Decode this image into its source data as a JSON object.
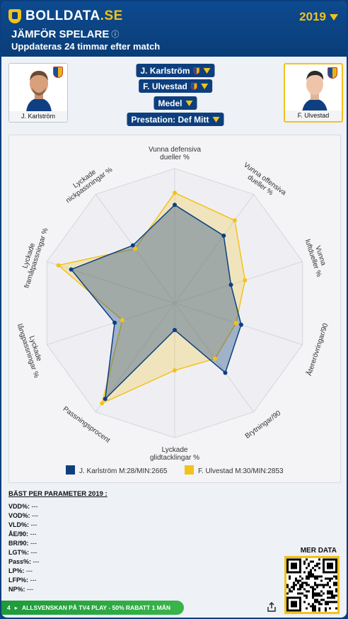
{
  "header": {
    "logo_text": "BOLLDATA",
    "logo_suffix": ".SE",
    "year": "2019",
    "title": "JÄMFÖR SPELARE",
    "title_icon": "info-icon",
    "subtitle": "Uppdateras 24 timmar efter match"
  },
  "players": [
    {
      "name": "J. Karlström",
      "selector": "J. Karlström",
      "color": "#0d3f7e"
    },
    {
      "name": "F. Ulvestad",
      "selector": "F. Ulvestad",
      "color": "#f3c21a"
    }
  ],
  "selectors": {
    "mode": "Medel",
    "preset": "Prestation: Def Mitt"
  },
  "chart_data": {
    "type": "radar",
    "axes": [
      "Vunna defensiva dueller %",
      "Vunna offensiva dueller %",
      "Vunna luftdueller %",
      "Återerövringar/90",
      "Brytningar/90",
      "Lyckade glidtacklingar %",
      "Passningsprocent",
      "Lyckade långpassningar %",
      "Lyckade framåtpassningar %",
      "Lyckade nickpassningar %"
    ],
    "range": [
      0,
      100
    ],
    "grid_levels": 10,
    "series": [
      {
        "name": "J. Karlström M:28/MIN:2665",
        "color": "#0d3f7e",
        "values": [
          73,
          62,
          44,
          52,
          64,
          20,
          88,
          47,
          81,
          53
        ]
      },
      {
        "name": "F. Ulvestad M:30/MIN:2853",
        "color": "#f3c21a",
        "values": [
          82,
          76,
          55,
          48,
          51,
          50,
          92,
          41,
          91,
          50
        ]
      }
    ],
    "legend": "bottom"
  },
  "best": {
    "title": "BÄST PER PARAMETER 2019 :",
    "rows": [
      {
        "k": "VDD%:",
        "v": "---"
      },
      {
        "k": "VOD%:",
        "v": "---"
      },
      {
        "k": "VLD%:",
        "v": "---"
      },
      {
        "k": "ÅE/90:",
        "v": "---"
      },
      {
        "k": "BR/90:",
        "v": "---"
      },
      {
        "k": "LGT%:",
        "v": "---"
      },
      {
        "k": "Pass%:",
        "v": "---"
      },
      {
        "k": "LP%:",
        "v": "---"
      },
      {
        "k": "LFP%:",
        "v": "---"
      },
      {
        "k": "NP%:",
        "v": "---"
      }
    ]
  },
  "footer": {
    "more_data": "MER DATA",
    "promo_number": "4",
    "promo_text": "ALLSVENSKAN PÅ TV4 PLAY - 50% RABATT 1 MÅN"
  }
}
